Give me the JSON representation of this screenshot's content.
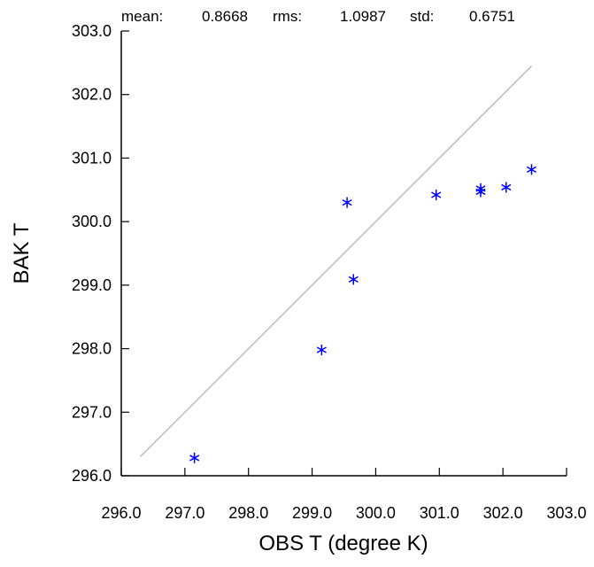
{
  "chart_data": {
    "type": "scatter",
    "title": "",
    "xlabel": "OBS T  (degree K)",
    "ylabel": "BAK T",
    "xlim": [
      296.0,
      303.0
    ],
    "ylim": [
      296.0,
      303.0
    ],
    "xticks": [
      "296.0",
      "297.0",
      "298.0",
      "299.0",
      "300.0",
      "301.0",
      "302.0",
      "303.0"
    ],
    "yticks": [
      "296.0",
      "297.0",
      "298.0",
      "299.0",
      "300.0",
      "301.0",
      "302.0",
      "303.0"
    ],
    "grid": false,
    "stats": {
      "mean_label": "mean:",
      "mean_value": "0.8668",
      "rms_label": "rms:",
      "rms_value": "1.0987",
      "std_label": "std:",
      "std_value": "0.6751"
    },
    "reference_line": {
      "x": [
        296.3,
        302.45
      ],
      "y": [
        296.3,
        302.45
      ],
      "color": "#c0c0c0"
    },
    "marker_color": "#0000ff",
    "marker": "asterisk",
    "points": [
      {
        "x": 297.15,
        "y": 296.28
      },
      {
        "x": 299.15,
        "y": 297.98
      },
      {
        "x": 299.55,
        "y": 300.3
      },
      {
        "x": 299.65,
        "y": 299.09
      },
      {
        "x": 300.95,
        "y": 300.42
      },
      {
        "x": 301.65,
        "y": 300.47
      },
      {
        "x": 301.65,
        "y": 300.52
      },
      {
        "x": 302.05,
        "y": 300.54
      },
      {
        "x": 302.45,
        "y": 300.82
      }
    ]
  }
}
